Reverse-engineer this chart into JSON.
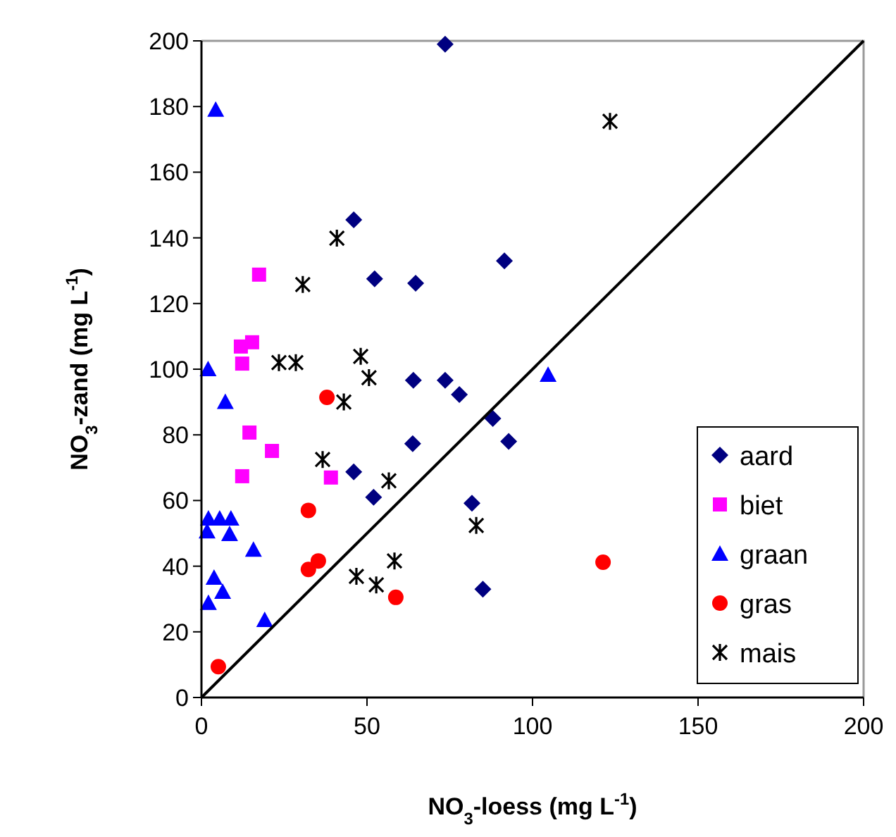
{
  "chart_data": {
    "type": "scatter",
    "xlabel": "NO$_{3}$-loess (mg L$^{-1}$)",
    "ylabel": "NO$_{3}$-zand (mg L$^{-1}$)",
    "xlim": [
      0,
      200
    ],
    "ylim": [
      0,
      200
    ],
    "xticks": [
      0,
      50,
      100,
      150,
      200
    ],
    "yticks": [
      0,
      20,
      40,
      60,
      80,
      100,
      120,
      140,
      160,
      180,
      200
    ],
    "grid": false,
    "legend": "bottom right",
    "series": [
      {
        "name": "aard",
        "color": "#000080",
        "marker": "diamond",
        "x": [
          73.6,
          46,
          52.3,
          64.7,
          91.5,
          64,
          73.6,
          77.9,
          63.8,
          46,
          52,
          88,
          92.8,
          81.7,
          85
        ],
        "values": [
          199,
          145.5,
          127.5,
          126.2,
          133,
          96.6,
          96.6,
          92.3,
          77.3,
          68.7,
          61,
          85,
          78,
          59.2,
          33
        ]
      },
      {
        "name": "biet",
        "color": "#ff00ff",
        "marker": "square",
        "x": [
          17.4,
          11.9,
          15.3,
          12.3,
          14.5,
          21.3,
          12.3,
          39.1
        ],
        "values": [
          128.8,
          106.9,
          108.2,
          101.7,
          80.7,
          75.1,
          67.4,
          67
        ]
      },
      {
        "name": "graan",
        "color": "#0000ff",
        "marker": "triangle",
        "x": [
          4.3,
          2,
          7.2,
          104.7,
          2.1,
          5.5,
          8.9,
          1.7,
          8.5,
          15.7,
          3.8,
          6.4,
          2.1,
          19.1
        ],
        "values": [
          179,
          100,
          90,
          98.3,
          54.5,
          54.5,
          54.5,
          50.6,
          49.8,
          45,
          36.5,
          32.2,
          28.8,
          23.6
        ]
      },
      {
        "name": "gras",
        "color": "#ff0000",
        "marker": "circle",
        "x": [
          37.9,
          32.3,
          35.3,
          32.3,
          58.7,
          5.1,
          121.3
        ],
        "values": [
          91.4,
          57,
          41.6,
          39,
          30.5,
          9.4,
          41.2
        ]
      },
      {
        "name": "mais",
        "color": "#000000",
        "marker": "cross",
        "x": [
          40.9,
          30.6,
          123.4,
          23.4,
          28.5,
          48.1,
          50.6,
          43,
          36.6,
          56.6,
          58.3,
          46.8,
          52.8,
          83
        ],
        "values": [
          139.9,
          125.8,
          175.5,
          102,
          102,
          103.9,
          97.4,
          90,
          72.5,
          66,
          41.6,
          36.9,
          34.3,
          52.4
        ]
      },
      {
        "type": "line",
        "color": "#000000",
        "marker": "none",
        "line_style": "solid",
        "x": [
          0,
          200
        ],
        "values": [
          0,
          200
        ]
      }
    ]
  }
}
